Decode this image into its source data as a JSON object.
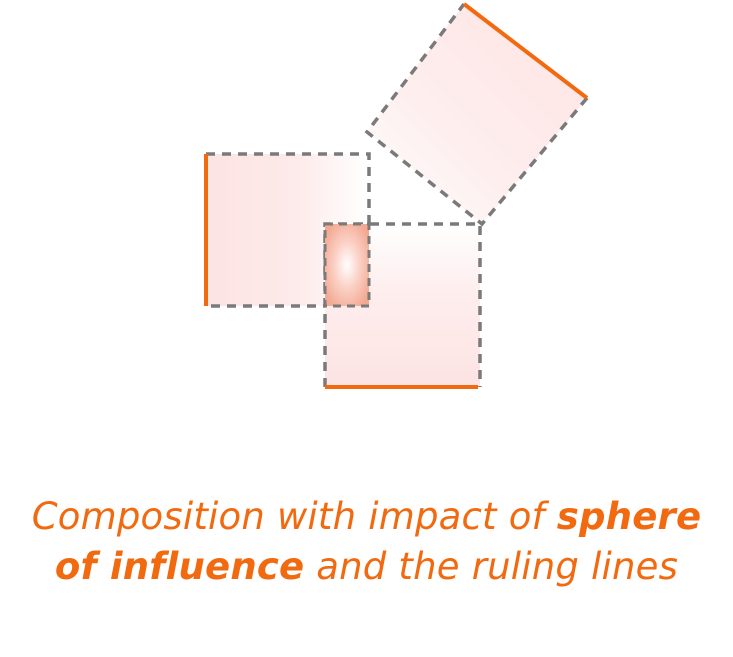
{
  "caption": {
    "line1_a": "Composition with impact of ",
    "line1_b": "sphere",
    "line2_a": "of influence",
    "line2_b": " and the ruling lines"
  },
  "colors": {
    "accent": "#f26a10",
    "dash": "#7a7a7a",
    "fill": "#fde6e6",
    "overlap": "#f6b7a9"
  }
}
